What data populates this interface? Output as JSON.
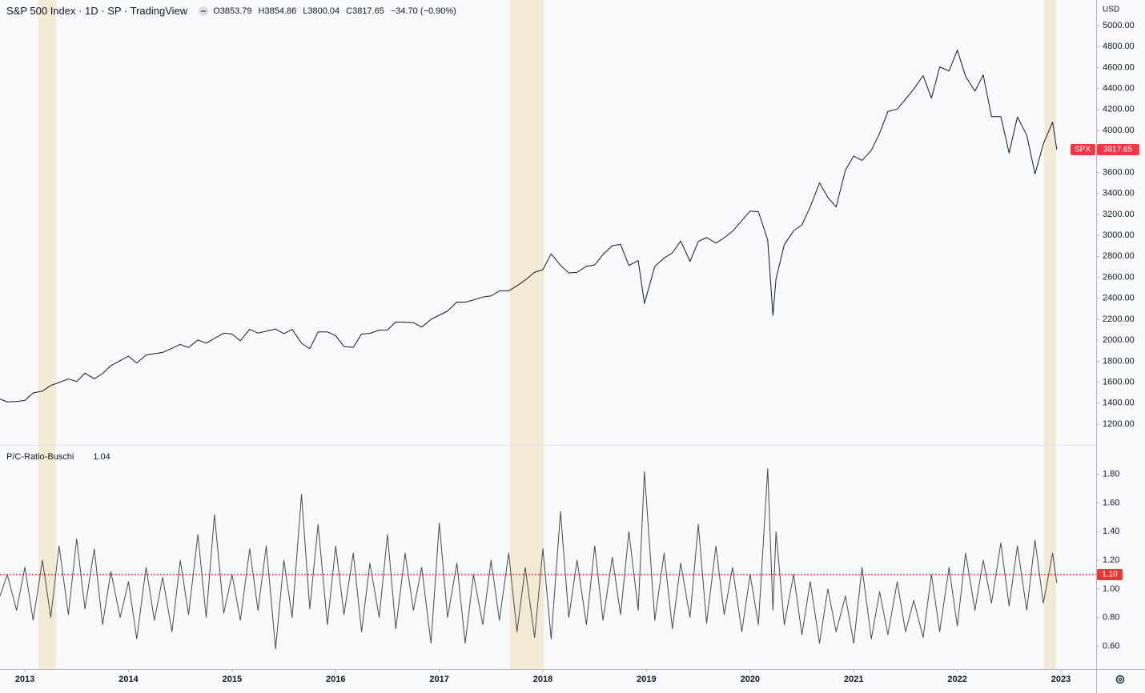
{
  "chart_data": [
    {
      "type": "line",
      "title": "S&P 500 Index · 1D · SP · TradingView",
      "stats": [
        {
          "key": "O",
          "value": 3853.79
        },
        {
          "key": "H",
          "value": 3854.86
        },
        {
          "key": "L",
          "value": 3800.04
        },
        {
          "key": "C",
          "value": 3817.65
        }
      ],
      "change": "−34.70 (−0.90%)",
      "currency": "USD",
      "xlim": [
        2012.76,
        2023.34
      ],
      "ylim": [
        1002,
        5244
      ],
      "yticks": [
        {
          "value": 1200,
          "label": "1200.00"
        },
        {
          "value": 1400,
          "label": "1400.00"
        },
        {
          "value": 1600,
          "label": "1600.00"
        },
        {
          "value": 1800,
          "label": "1800.00"
        },
        {
          "value": 2000,
          "label": "2000.00"
        },
        {
          "value": 2200,
          "label": "2200.00"
        },
        {
          "value": 2400,
          "label": "2400.00"
        },
        {
          "value": 2600,
          "label": "2600.00"
        },
        {
          "value": 2800,
          "label": "2800.00"
        },
        {
          "value": 3000,
          "label": "3000.00"
        },
        {
          "value": 3200,
          "label": "3200.00"
        },
        {
          "value": 3400,
          "label": "3400.00"
        },
        {
          "value": 3600,
          "label": "3600.00"
        },
        {
          "value": 3800,
          "label": "3800.00"
        },
        {
          "value": 4000,
          "label": "4000.00"
        },
        {
          "value": 4200,
          "label": "4200.00"
        },
        {
          "value": 4400,
          "label": "4400.00"
        },
        {
          "value": 4600,
          "label": "4600.00"
        },
        {
          "value": 4800,
          "label": "4800.00"
        },
        {
          "value": 5000,
          "label": "5000.00"
        }
      ],
      "bands": [
        [
          2013.13,
          2013.3
        ],
        [
          2017.68,
          2018.01
        ],
        [
          2022.84,
          2022.95
        ]
      ],
      "band_color": "#f3ead6",
      "x": [
        2012.76,
        2012.83,
        2012.92,
        2013.0,
        2013.08,
        2013.17,
        2013.25,
        2013.33,
        2013.42,
        2013.5,
        2013.58,
        2013.67,
        2013.75,
        2013.83,
        2013.92,
        2014.0,
        2014.08,
        2014.17,
        2014.25,
        2014.33,
        2014.42,
        2014.5,
        2014.58,
        2014.67,
        2014.75,
        2014.83,
        2014.92,
        2015.0,
        2015.08,
        2015.17,
        2015.25,
        2015.33,
        2015.42,
        2015.5,
        2015.58,
        2015.67,
        2015.75,
        2015.83,
        2015.92,
        2016.0,
        2016.08,
        2016.17,
        2016.25,
        2016.33,
        2016.42,
        2016.5,
        2016.58,
        2016.67,
        2016.75,
        2016.83,
        2016.92,
        2017.0,
        2017.08,
        2017.17,
        2017.25,
        2017.33,
        2017.42,
        2017.5,
        2017.58,
        2017.67,
        2017.75,
        2017.83,
        2017.92,
        2018.0,
        2018.08,
        2018.17,
        2018.25,
        2018.33,
        2018.42,
        2018.5,
        2018.58,
        2018.67,
        2018.75,
        2018.83,
        2018.92,
        2018.98,
        2019.08,
        2019.17,
        2019.25,
        2019.33,
        2019.42,
        2019.5,
        2019.58,
        2019.67,
        2019.75,
        2019.83,
        2019.92,
        2020.0,
        2020.08,
        2020.17,
        2020.22,
        2020.25,
        2020.33,
        2020.42,
        2020.5,
        2020.58,
        2020.67,
        2020.75,
        2020.83,
        2020.92,
        2021.0,
        2021.08,
        2021.17,
        2021.25,
        2021.33,
        2021.42,
        2021.5,
        2021.58,
        2021.67,
        2021.75,
        2021.83,
        2021.92,
        2022.0,
        2022.08,
        2022.17,
        2022.25,
        2022.33,
        2022.42,
        2022.5,
        2022.58,
        2022.67,
        2022.75,
        2022.83,
        2022.92,
        2022.96
      ],
      "series": [
        {
          "name": "SPX",
          "color": "#131722",
          "tag_color": "#f23645",
          "values": [
            1440,
            1412,
            1416,
            1426,
            1498,
            1515,
            1569,
            1597,
            1631,
            1606,
            1686,
            1633,
            1682,
            1757,
            1806,
            1848,
            1783,
            1859,
            1872,
            1884,
            1924,
            1960,
            1931,
            2003,
            1972,
            2018,
            2068,
            2059,
            1995,
            2105,
            2068,
            2086,
            2107,
            2063,
            2104,
            1972,
            1920,
            2079,
            2080,
            2044,
            1940,
            1932,
            2060,
            2065,
            2097,
            2099,
            2174,
            2171,
            2168,
            2126,
            2199,
            2239,
            2279,
            2364,
            2363,
            2384,
            2412,
            2423,
            2470,
            2472,
            2519,
            2575,
            2648,
            2674,
            2824,
            2714,
            2641,
            2648,
            2705,
            2718,
            2816,
            2902,
            2914,
            2712,
            2760,
            2351,
            2704,
            2784,
            2834,
            2946,
            2752,
            2942,
            2980,
            2926,
            2977,
            3038,
            3141,
            3231,
            3226,
            2954,
            2237,
            2585,
            2912,
            3044,
            3100,
            3271,
            3500,
            3363,
            3270,
            3622,
            3756,
            3714,
            3811,
            3973,
            4181,
            4204,
            4298,
            4395,
            4523,
            4308,
            4605,
            4567,
            4766,
            4516,
            4374,
            4530,
            4132,
            4132,
            3785,
            4130,
            3955,
            3586,
            3872,
            4080,
            3817.65
          ]
        }
      ]
    },
    {
      "type": "line",
      "xlim": [
        2012.76,
        2023.34
      ],
      "xticks": [
        2013,
        2014,
        2015,
        2016,
        2017,
        2018,
        2019,
        2020,
        2021,
        2022,
        2023
      ],
      "ylim": [
        0.44,
        2.0
      ],
      "yticks": [
        {
          "value": 0.6,
          "label": "0.60"
        },
        {
          "value": 0.8,
          "label": "0.80"
        },
        {
          "value": 1.0,
          "label": "1.00"
        },
        {
          "value": 1.2,
          "label": "1.20"
        },
        {
          "value": 1.4,
          "label": "1.40"
        },
        {
          "value": 1.6,
          "label": "1.60"
        },
        {
          "value": 1.8,
          "label": "1.80"
        }
      ],
      "reference": {
        "value": 1.1,
        "label": "1.10",
        "color": "#e53935"
      },
      "x": [
        2012.76,
        2012.83,
        2012.92,
        2013.0,
        2013.08,
        2013.17,
        2013.25,
        2013.33,
        2013.42,
        2013.5,
        2013.58,
        2013.67,
        2013.75,
        2013.83,
        2013.92,
        2014.0,
        2014.08,
        2014.17,
        2014.25,
        2014.33,
        2014.42,
        2014.5,
        2014.58,
        2014.67,
        2014.75,
        2014.83,
        2014.92,
        2015.0,
        2015.08,
        2015.17,
        2015.25,
        2015.33,
        2015.42,
        2015.5,
        2015.58,
        2015.67,
        2015.75,
        2015.83,
        2015.92,
        2016.0,
        2016.08,
        2016.17,
        2016.25,
        2016.33,
        2016.42,
        2016.5,
        2016.58,
        2016.67,
        2016.75,
        2016.83,
        2016.92,
        2017.0,
        2017.08,
        2017.17,
        2017.25,
        2017.33,
        2017.42,
        2017.5,
        2017.58,
        2017.67,
        2017.75,
        2017.83,
        2017.92,
        2018.0,
        2018.08,
        2018.17,
        2018.25,
        2018.33,
        2018.42,
        2018.5,
        2018.58,
        2018.67,
        2018.75,
        2018.83,
        2018.92,
        2018.98,
        2019.08,
        2019.17,
        2019.25,
        2019.33,
        2019.42,
        2019.5,
        2019.58,
        2019.67,
        2019.75,
        2019.83,
        2019.92,
        2020.0,
        2020.08,
        2020.17,
        2020.22,
        2020.25,
        2020.33,
        2020.42,
        2020.5,
        2020.58,
        2020.67,
        2020.75,
        2020.83,
        2020.92,
        2021.0,
        2021.08,
        2021.17,
        2021.25,
        2021.33,
        2021.42,
        2021.5,
        2021.58,
        2021.67,
        2021.75,
        2021.83,
        2021.92,
        2022.0,
        2022.08,
        2022.17,
        2022.25,
        2022.33,
        2022.42,
        2022.5,
        2022.58,
        2022.67,
        2022.75,
        2022.83,
        2022.92,
        2022.96
      ],
      "series": [
        {
          "name": "P/C-Ratio-Buschi",
          "color": "#4a4a4a",
          "values": [
            0.95,
            1.1,
            0.85,
            1.15,
            0.78,
            1.2,
            0.8,
            1.3,
            0.82,
            1.35,
            0.86,
            1.28,
            0.75,
            1.12,
            0.8,
            1.05,
            0.65,
            1.15,
            0.78,
            1.08,
            0.7,
            1.2,
            0.82,
            1.38,
            0.8,
            1.52,
            0.83,
            1.1,
            0.78,
            1.28,
            0.85,
            1.3,
            0.58,
            1.2,
            0.8,
            1.66,
            0.86,
            1.45,
            0.75,
            1.3,
            0.82,
            1.25,
            0.7,
            1.18,
            0.8,
            1.38,
            0.72,
            1.25,
            0.85,
            1.15,
            0.62,
            1.46,
            0.8,
            1.18,
            0.62,
            1.1,
            0.75,
            1.2,
            0.78,
            1.25,
            0.7,
            1.15,
            0.66,
            1.28,
            0.65,
            1.54,
            0.8,
            1.2,
            0.75,
            1.3,
            0.78,
            1.22,
            0.82,
            1.4,
            0.85,
            1.82,
            0.78,
            1.25,
            0.72,
            1.18,
            0.8,
            1.45,
            0.76,
            1.3,
            0.82,
            1.15,
            0.7,
            1.1,
            0.75,
            1.84,
            0.85,
            1.4,
            0.75,
            1.1,
            0.68,
            1.05,
            0.62,
            1.0,
            0.7,
            0.95,
            0.62,
            1.15,
            0.65,
            0.98,
            0.68,
            1.05,
            0.7,
            0.92,
            0.66,
            1.1,
            0.7,
            1.15,
            0.74,
            1.25,
            0.85,
            1.2,
            0.9,
            1.32,
            0.88,
            1.3,
            0.85,
            1.34,
            0.9,
            1.25,
            1.04
          ]
        }
      ]
    }
  ]
}
